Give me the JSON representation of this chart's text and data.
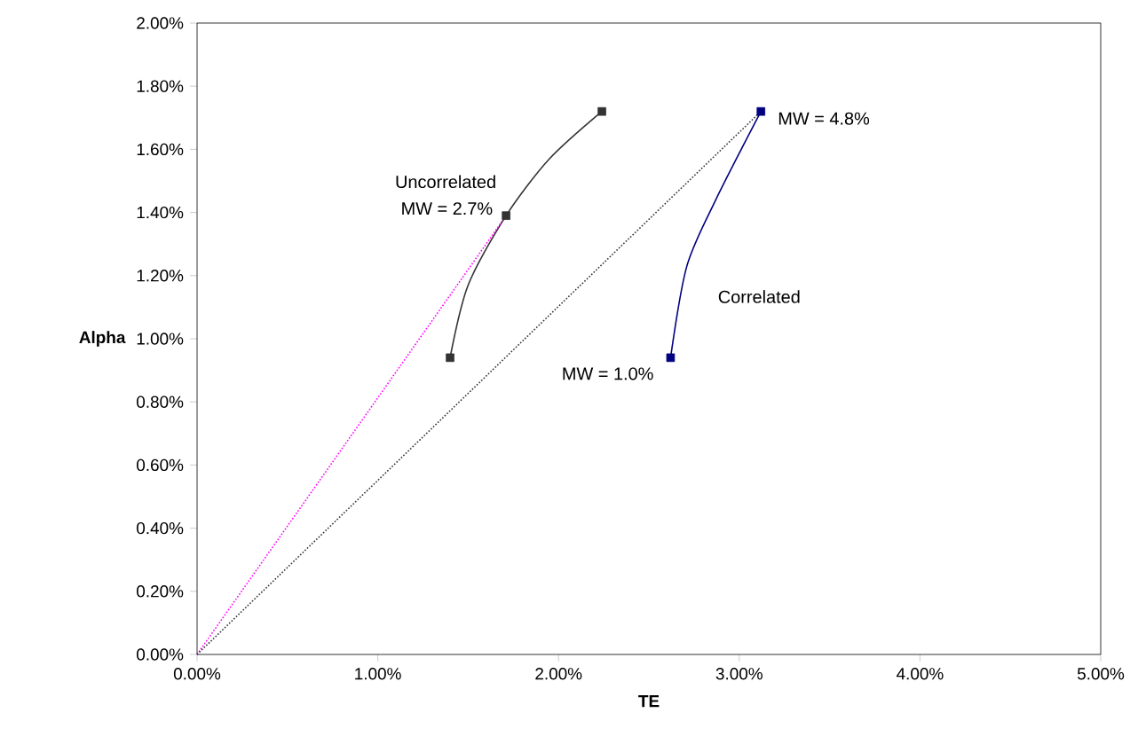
{
  "chart_data": {
    "type": "line",
    "xlabel": "TE",
    "ylabel": "Alpha",
    "xlim": [
      0,
      5
    ],
    "ylim": [
      0,
      2
    ],
    "xticks": [
      {
        "value": 0,
        "label": "0.00%"
      },
      {
        "value": 1,
        "label": "1.00%"
      },
      {
        "value": 2,
        "label": "2.00%"
      },
      {
        "value": 3,
        "label": "3.00%"
      },
      {
        "value": 4,
        "label": "4.00%"
      },
      {
        "value": 5,
        "label": "5.00%"
      }
    ],
    "yticks": [
      {
        "value": 0,
        "label": "0.00%"
      },
      {
        "value": 0.2,
        "label": "0.20%"
      },
      {
        "value": 0.4,
        "label": "0.40%"
      },
      {
        "value": 0.6,
        "label": "0.60%"
      },
      {
        "value": 0.8,
        "label": "0.80%"
      },
      {
        "value": 1.0,
        "label": "1.00%"
      },
      {
        "value": 1.2,
        "label": "1.20%"
      },
      {
        "value": 1.4,
        "label": "1.40%"
      },
      {
        "value": 1.6,
        "label": "1.60%"
      },
      {
        "value": 1.8,
        "label": "1.80%"
      },
      {
        "value": 2.0,
        "label": "2.00%"
      }
    ],
    "grid": false,
    "series": [
      {
        "name": "Uncorrelated",
        "color": "#333333",
        "marker": "none",
        "x": [
          1.4,
          1.5,
          1.71,
          1.95,
          2.24
        ],
        "values": [
          0.94,
          1.17,
          1.39,
          1.57,
          1.72
        ]
      },
      {
        "type": "scatter",
        "color": "#333333",
        "marker": "square",
        "x": [
          1.4,
          1.71,
          2.24
        ],
        "values": [
          0.94,
          1.39,
          1.72
        ]
      },
      {
        "name": "Correlated",
        "color": "#000080",
        "marker": "none",
        "x": [
          2.62,
          2.71,
          2.87,
          3.12
        ],
        "values": [
          0.94,
          1.23,
          1.44,
          1.72
        ]
      },
      {
        "type": "scatter",
        "color": "#000080",
        "marker": "square",
        "x": [
          2.62,
          3.12
        ],
        "values": [
          0.94,
          1.72
        ]
      },
      {
        "color": "#ff00ff",
        "marker": "none",
        "line_style": "dotted",
        "x": [
          0,
          1.71
        ],
        "values": [
          0,
          1.39
        ]
      },
      {
        "color": "#333333",
        "marker": "none",
        "line_style": "dotted",
        "x": [
          0,
          3.12
        ],
        "values": [
          0,
          1.72
        ]
      }
    ],
    "annotations": [
      {
        "text": "MW = 2.7%",
        "x": 1.71,
        "y": 1.39
      },
      {
        "text": "MW = 1.0%",
        "x": 2.62,
        "y": 0.94
      },
      {
        "text": "MW = 4.8%",
        "x": 3.12,
        "y": 1.72
      }
    ]
  }
}
